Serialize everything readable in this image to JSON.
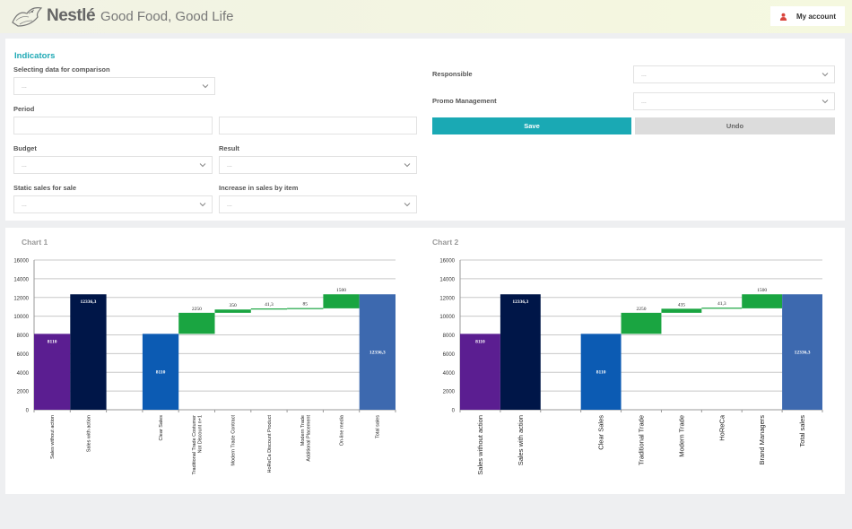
{
  "header": {
    "brand": "Nestlé",
    "slogan": "Good Food, Good Life",
    "account_label": "My account",
    "account_icon": "user-icon"
  },
  "indicators": {
    "title": "Indicators",
    "selecting_label": "Selecting data for comparison",
    "selecting_value": "...",
    "period_label": "Period",
    "period_from": "",
    "period_to": "",
    "budget_label": "Budget",
    "budget_value": "...",
    "result_label": "Result",
    "result_value": "...",
    "static_label": "Static sales for sale",
    "static_value": "...",
    "increase_label": "Increase in sales by item",
    "increase_value": "...",
    "responsible_label": "Responsible",
    "responsible_value": "...",
    "promo_label": "Promo Management",
    "promo_value": "...",
    "save_label": "Save",
    "undo_label": "Undo"
  },
  "colors": {
    "accent": "#1aa9b4",
    "purple": "#5b1e91",
    "navy": "#001648",
    "blue": "#0c5bb3",
    "green": "#1aa541",
    "steel": "#3d69af"
  },
  "chart_data": [
    {
      "type": "bar",
      "subtype": "waterfall",
      "title": "Chart 1",
      "ylim": [
        0,
        16000
      ],
      "yticks": [
        0,
        2000,
        4000,
        6000,
        8000,
        10000,
        12000,
        14000,
        16000
      ],
      "grid": true,
      "categories": [
        "Sales without action",
        "Sales with action",
        "",
        "Clear Sales",
        "Traditional Trade Costumer Not Discount n+1",
        "Modern Trade Contract",
        "HoReCa Discount Product",
        "Modern Trade Additional Placement",
        "On-line media",
        "Total sales"
      ],
      "bars": [
        {
          "base": 0,
          "value": 8110,
          "label": "8110",
          "color": "purple",
          "label_pos": "inside"
        },
        {
          "base": 0,
          "value": 12336.3,
          "label": "12336,3",
          "color": "navy",
          "label_pos": "inside"
        },
        null,
        {
          "base": 0,
          "value": 8110,
          "label": "8110",
          "color": "blue",
          "label_pos": "middle"
        },
        {
          "base": 8110,
          "value": 2250,
          "label": "2250",
          "color": "green",
          "label_pos": "above"
        },
        {
          "base": 10360,
          "value": 350,
          "label": "350",
          "color": "green",
          "label_pos": "above"
        },
        {
          "base": 10710,
          "value": 41.3,
          "label": "41,3",
          "color": "green",
          "label_pos": "above"
        },
        {
          "base": 10751.3,
          "value": 85,
          "label": "85",
          "color": "green",
          "label_pos": "above"
        },
        {
          "base": 10836.3,
          "value": 1500,
          "label": "1500",
          "color": "green",
          "label_pos": "above"
        },
        {
          "base": 0,
          "value": 12336.3,
          "label": "12336,3",
          "color": "steel",
          "label_pos": "middle"
        }
      ]
    },
    {
      "type": "bar",
      "subtype": "waterfall",
      "title": "Chart 2",
      "ylim": [
        0,
        16000
      ],
      "yticks": [
        0,
        2000,
        4000,
        6000,
        8000,
        10000,
        12000,
        14000,
        16000
      ],
      "grid": true,
      "categories": [
        "Sales without action",
        "Sales with action",
        "",
        "Clear Sales",
        "Traditional Trade",
        "Modern Trade",
        "HoReCa",
        "Brand Managers",
        "Total sales"
      ],
      "bars": [
        {
          "base": 0,
          "value": 8110,
          "label": "8110",
          "color": "purple",
          "label_pos": "inside"
        },
        {
          "base": 0,
          "value": 12336.3,
          "label": "12336,3",
          "color": "navy",
          "label_pos": "inside"
        },
        null,
        {
          "base": 0,
          "value": 8110,
          "label": "8110",
          "color": "blue",
          "label_pos": "middle"
        },
        {
          "base": 8110,
          "value": 2250,
          "label": "2250",
          "color": "green",
          "label_pos": "above"
        },
        {
          "base": 10360,
          "value": 435,
          "label": "435",
          "color": "green",
          "label_pos": "above"
        },
        {
          "base": 10795,
          "value": 41.3,
          "label": "41,3",
          "color": "green",
          "label_pos": "above"
        },
        {
          "base": 10836.3,
          "value": 1500,
          "label": "1500",
          "color": "green",
          "label_pos": "above"
        },
        {
          "base": 0,
          "value": 12336.3,
          "label": "12336,3",
          "color": "steel",
          "label_pos": "middle"
        }
      ]
    }
  ]
}
